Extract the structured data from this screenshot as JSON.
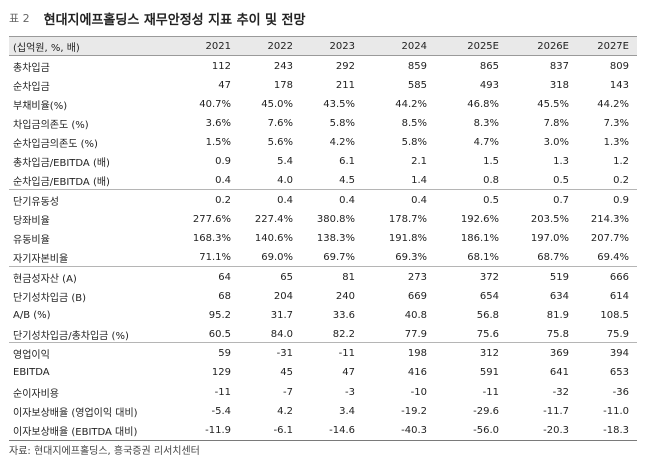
{
  "figure": {
    "label": "표 2",
    "title": "현대지에프홀딩스 재무안정성 지표 추이 및 전망"
  },
  "table": {
    "unit_label": "(십억원, %, 배)",
    "years": [
      "2021",
      "2022",
      "2023",
      "2024",
      "2025E",
      "2026E",
      "2027E"
    ],
    "rows": [
      {
        "label": "총차입금",
        "values": [
          "112",
          "243",
          "292",
          "859",
          "865",
          "837",
          "809"
        ]
      },
      {
        "label": "순차입금",
        "values": [
          "47",
          "178",
          "211",
          "585",
          "493",
          "318",
          "143"
        ]
      },
      {
        "label": "부채비율(%)",
        "values": [
          "40.7%",
          "45.0%",
          "43.5%",
          "44.2%",
          "46.8%",
          "45.5%",
          "44.2%"
        ]
      },
      {
        "label": "차입금의존도 (%)",
        "values": [
          "3.6%",
          "7.6%",
          "5.8%",
          "8.5%",
          "8.3%",
          "7.8%",
          "7.3%"
        ]
      },
      {
        "label": "순차입금의존도 (%)",
        "values": [
          "1.5%",
          "5.6%",
          "4.2%",
          "5.8%",
          "4.7%",
          "3.0%",
          "1.3%"
        ]
      },
      {
        "label": "총차입금/EBITDA (배)",
        "values": [
          "0.9",
          "5.4",
          "6.1",
          "2.1",
          "1.5",
          "1.3",
          "1.2"
        ]
      },
      {
        "label": "순차입금/EBITDA (배)",
        "values": [
          "0.4",
          "4.0",
          "4.5",
          "1.4",
          "0.8",
          "0.5",
          "0.2"
        ]
      },
      {
        "label": "단기유동성",
        "values": [
          "0.2",
          "0.4",
          "0.4",
          "0.4",
          "0.5",
          "0.7",
          "0.9"
        ]
      },
      {
        "label": "당좌비율",
        "values": [
          "277.6%",
          "227.4%",
          "380.8%",
          "178.7%",
          "192.6%",
          "203.5%",
          "214.3%"
        ]
      },
      {
        "label": "유동비율",
        "values": [
          "168.3%",
          "140.6%",
          "138.3%",
          "191.8%",
          "186.1%",
          "197.0%",
          "207.7%"
        ]
      },
      {
        "label": "자기자본비율",
        "values": [
          "71.1%",
          "69.0%",
          "69.7%",
          "69.3%",
          "68.1%",
          "68.7%",
          "69.4%"
        ]
      },
      {
        "label": "현금성자산 (A)",
        "values": [
          "64",
          "65",
          "81",
          "273",
          "372",
          "519",
          "666"
        ]
      },
      {
        "label": "단기성차입금 (B)",
        "values": [
          "68",
          "204",
          "240",
          "669",
          "654",
          "634",
          "614"
        ]
      },
      {
        "label": "A/B (%)",
        "values": [
          "95.2",
          "31.7",
          "33.6",
          "40.8",
          "56.8",
          "81.9",
          "108.5"
        ]
      },
      {
        "label": "단기성차입금/총차입금 (%)",
        "values": [
          "60.5",
          "84.0",
          "82.2",
          "77.9",
          "75.6",
          "75.8",
          "75.9"
        ]
      },
      {
        "label": "영업이익",
        "values": [
          "59",
          "-31",
          "-11",
          "198",
          "312",
          "369",
          "394"
        ]
      },
      {
        "label": "EBITDA",
        "values": [
          "129",
          "45",
          "47",
          "416",
          "591",
          "641",
          "653"
        ]
      },
      {
        "label": "순이자비용",
        "values": [
          "-11",
          "-7",
          "-3",
          "-10",
          "-11",
          "-32",
          "-36"
        ]
      },
      {
        "label": "이자보상배율 (영업이익 대비)",
        "values": [
          "-5.4",
          "4.2",
          "3.4",
          "-19.2",
          "-29.6",
          "-11.7",
          "-11.0"
        ]
      },
      {
        "label": "이자보상배율 (EBITDA 대비)",
        "values": [
          "-11.9",
          "-6.1",
          "-14.6",
          "-40.3",
          "-56.0",
          "-20.3",
          "-18.3"
        ]
      }
    ]
  },
  "source": "자료: 현대지에프홀딩스, 흥국증권 리서치센터"
}
